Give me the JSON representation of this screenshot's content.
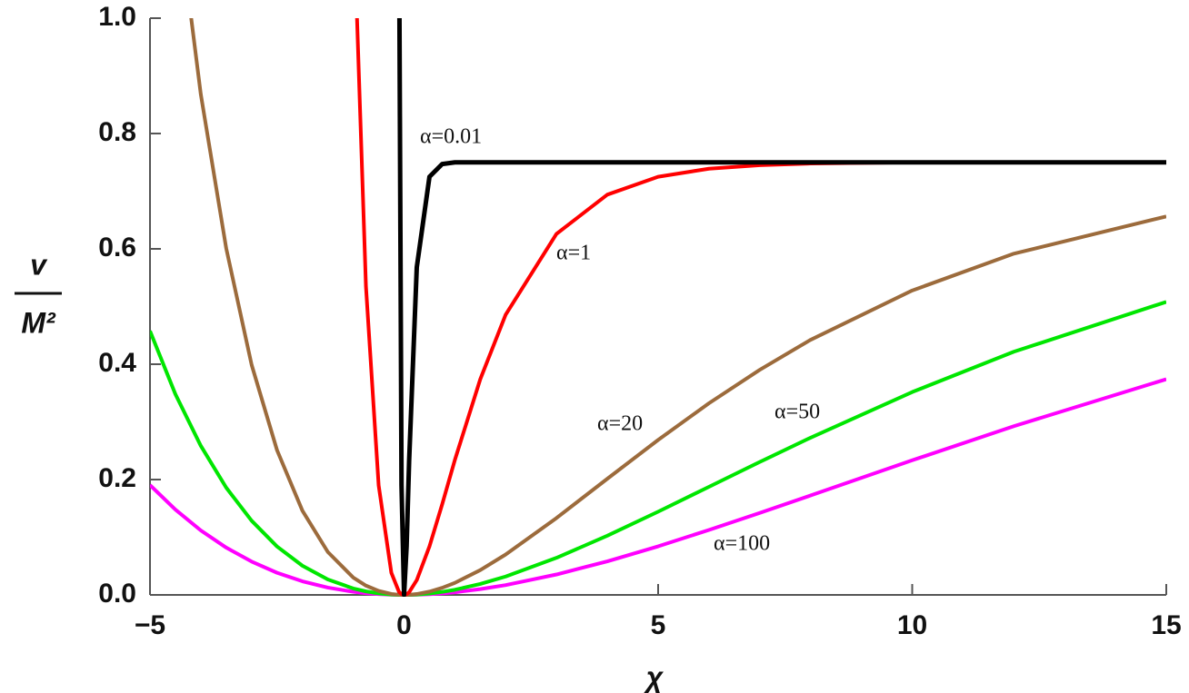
{
  "chart_data": {
    "type": "line",
    "xlabel": "χ",
    "ylabel_numerator": "v",
    "ylabel_denominator": "M²",
    "x": [
      -5,
      -4.5,
      -4,
      -3.5,
      -3,
      -2.5,
      -2,
      -1.5,
      -1,
      -0.75,
      -0.5,
      -0.25,
      -0.1,
      -0.05,
      0,
      0.05,
      0.1,
      0.25,
      0.5,
      0.75,
      1,
      1.5,
      2,
      3,
      4,
      5,
      6,
      7,
      8,
      10,
      12,
      15
    ],
    "series": [
      {
        "name": "α=0.01",
        "color": "#000000",
        "values": [
          null,
          null,
          null,
          null,
          null,
          null,
          null,
          null,
          null,
          null,
          null,
          null,
          1.19,
          0.19,
          0,
          0.084,
          0.233,
          0.568,
          0.725,
          0.747,
          0.75,
          0.75,
          0.75,
          0.75,
          0.75,
          0.75,
          0.75,
          0.75,
          0.75,
          0.75,
          0.75,
          0.75
        ]
      },
      {
        "name": "α=1",
        "color": "#ff0000",
        "values": [
          null,
          null,
          null,
          null,
          null,
          null,
          null,
          null,
          1.196,
          0.535,
          0.19,
          0.0383,
          0.0054,
          0.0013,
          0,
          0.0012,
          0.0046,
          0.0256,
          0.0842,
          0.157,
          0.234,
          0.374,
          0.486,
          0.626,
          0.694,
          0.725,
          0.739,
          0.745,
          0.748,
          0.75,
          0.75,
          0.75
        ]
      },
      {
        "name": "α=20",
        "color": "#9c6b3c",
        "values": [
          null,
          1.217,
          0.868,
          0.601,
          0.399,
          0.251,
          0.146,
          0.0744,
          0.0301,
          0.0161,
          0.0069,
          0.0016,
          0.0003,
          0.0001,
          0,
          0.0001,
          0.0002,
          0.0015,
          0.0057,
          0.0123,
          0.0209,
          0.043,
          0.0701,
          0.1333,
          0.2014,
          0.2687,
          0.3323,
          0.3903,
          0.4423,
          0.5278,
          0.5917,
          0.6562
        ]
      },
      {
        "name": "α=50",
        "color": "#00e600",
        "values": [
          0.4576,
          0.348,
          0.2585,
          0.186,
          0.1286,
          0.084,
          0.0506,
          0.0268,
          0.0112,
          0.0061,
          0.0026,
          0.0006,
          0.0001,
          0,
          0,
          0,
          0.0001,
          0.0006,
          0.0024,
          0.0052,
          0.0089,
          0.019,
          0.0319,
          0.0643,
          0.1026,
          0.1443,
          0.1874,
          0.2305,
          0.2726,
          0.3517,
          0.4216,
          0.5081
        ]
      },
      {
        "name": "α=100",
        "color": "#ff00ff",
        "values": [
          0.1905,
          0.1479,
          0.1118,
          0.082,
          0.0578,
          0.0384,
          0.0236,
          0.0127,
          0.0054,
          0.003,
          0.0013,
          0.0003,
          0.0001,
          0,
          0,
          0,
          0,
          0.0003,
          0.0012,
          0.0026,
          0.0046,
          0.01,
          0.017,
          0.0354,
          0.0582,
          0.0842,
          0.1126,
          0.1421,
          0.1724,
          0.2334,
          0.2925,
          0.374
        ]
      }
    ],
    "xlim": [
      -5,
      15
    ],
    "xticks": [
      {
        "value": -5,
        "label": "−5"
      },
      0,
      5,
      10,
      15
    ],
    "ylim": [
      0,
      1
    ],
    "yticks": [
      {
        "value": 0,
        "label": "0.0"
      },
      0.2,
      0.4,
      0.6,
      0.8,
      {
        "value": 1,
        "label": "1.0"
      }
    ]
  }
}
